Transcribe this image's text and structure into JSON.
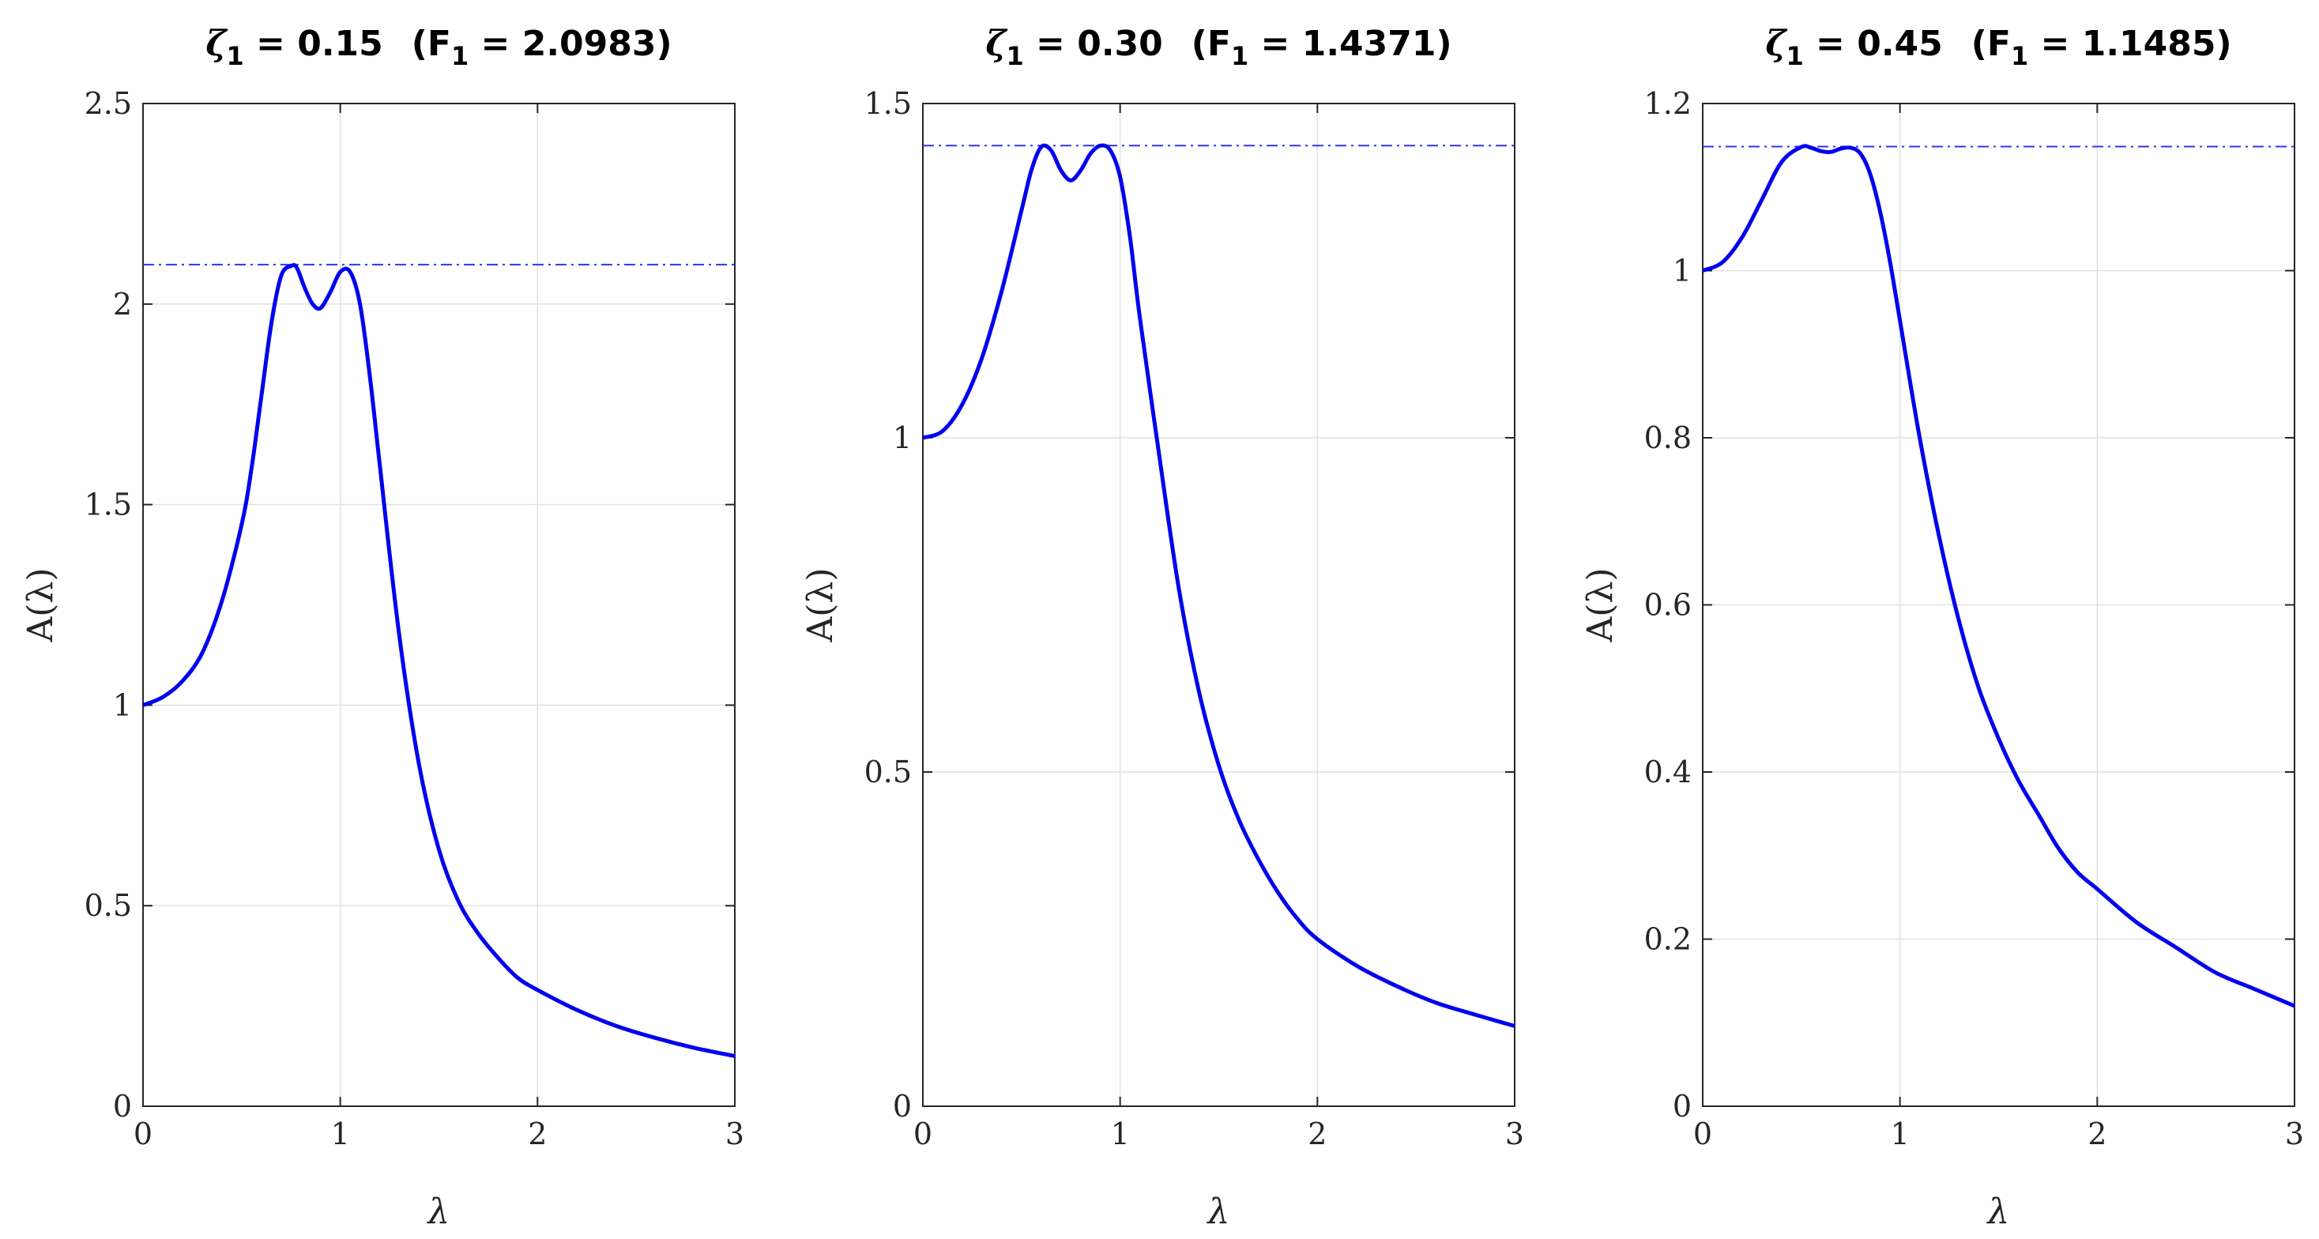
{
  "chart_data": [
    {
      "type": "line",
      "title_parts": {
        "zeta": "ζ",
        "sub": "1",
        "zeta_value": " = 0.15",
        "f_open": "(F",
        "f_value": " = 2.0983)"
      },
      "xlabel": "λ",
      "ylabel": "A(λ)",
      "xlim": [
        0,
        3
      ],
      "ylim": [
        0,
        2.5
      ],
      "xticks": [
        0,
        1,
        2,
        3
      ],
      "yticks": [
        0,
        0.5,
        1,
        1.5,
        2,
        2.5
      ],
      "xtick_labels": [
        "0",
        "1",
        "2",
        "3"
      ],
      "ytick_labels": [
        "0",
        "0.5",
        "1",
        "1.5",
        "2",
        "2.5"
      ],
      "grid": true,
      "reference_line": {
        "y": 2.0983,
        "style": "dash-dot"
      },
      "series": [
        {
          "x": [
            0,
            0.1,
            0.2,
            0.3,
            0.4,
            0.5,
            0.55,
            0.6,
            0.65,
            0.7,
            0.75,
            0.78,
            0.82,
            0.86,
            0.9,
            0.95,
            1.0,
            1.05,
            1.1,
            1.15,
            1.2,
            1.3,
            1.4,
            1.5,
            1.6,
            1.7,
            1.8,
            1.9,
            2.0,
            2.2,
            2.4,
            2.6,
            2.8,
            3.0
          ],
          "y": [
            1.0,
            1.02,
            1.06,
            1.13,
            1.26,
            1.45,
            1.59,
            1.77,
            1.95,
            2.07,
            2.095,
            2.09,
            2.04,
            2.0,
            1.99,
            2.03,
            2.08,
            2.08,
            2.0,
            1.82,
            1.6,
            1.17,
            0.85,
            0.64,
            0.51,
            0.43,
            0.37,
            0.32,
            0.29,
            0.24,
            0.2,
            0.17,
            0.145,
            0.125
          ]
        }
      ]
    },
    {
      "type": "line",
      "title_parts": {
        "zeta": "ζ",
        "sub": "1",
        "zeta_value": " = 0.30",
        "f_open": "(F",
        "f_value": " = 1.4371)"
      },
      "xlabel": "λ",
      "ylabel": "A(λ)",
      "xlim": [
        0,
        3
      ],
      "ylim": [
        0,
        1.5
      ],
      "xticks": [
        0,
        1,
        2,
        3
      ],
      "yticks": [
        0,
        0.5,
        1,
        1.5
      ],
      "xtick_labels": [
        "0",
        "1",
        "2",
        "3"
      ],
      "ytick_labels": [
        "0",
        "0.5",
        "1",
        "1.5"
      ],
      "grid": true,
      "reference_line": {
        "y": 1.4371,
        "style": "dash-dot"
      },
      "series": [
        {
          "x": [
            0,
            0.1,
            0.2,
            0.3,
            0.4,
            0.5,
            0.55,
            0.6,
            0.65,
            0.7,
            0.75,
            0.8,
            0.85,
            0.9,
            0.95,
            1.0,
            1.05,
            1.1,
            1.2,
            1.3,
            1.4,
            1.5,
            1.6,
            1.7,
            1.8,
            1.9,
            2.0,
            2.2,
            2.4,
            2.6,
            2.8,
            3.0
          ],
          "y": [
            1.0,
            1.01,
            1.05,
            1.12,
            1.22,
            1.34,
            1.4,
            1.435,
            1.43,
            1.4,
            1.385,
            1.4,
            1.425,
            1.437,
            1.43,
            1.39,
            1.3,
            1.18,
            0.97,
            0.77,
            0.62,
            0.51,
            0.43,
            0.37,
            0.32,
            0.28,
            0.25,
            0.21,
            0.18,
            0.155,
            0.137,
            0.12
          ]
        }
      ]
    },
    {
      "type": "line",
      "title_parts": {
        "zeta": "ζ",
        "sub": "1",
        "zeta_value": " = 0.45",
        "f_open": "(F",
        "f_value": " = 1.1485)"
      },
      "xlabel": "λ",
      "ylabel": "A(λ)",
      "xlim": [
        0,
        3
      ],
      "ylim": [
        0,
        1.2
      ],
      "xticks": [
        0,
        1,
        2,
        3
      ],
      "yticks": [
        0,
        0.2,
        0.4,
        0.6,
        0.8,
        1,
        1.2
      ],
      "xtick_labels": [
        "0",
        "1",
        "2",
        "3"
      ],
      "ytick_labels": [
        "0",
        "0.2",
        "0.4",
        "0.6",
        "0.8",
        "1",
        "1.2"
      ],
      "grid": true,
      "reference_line": {
        "y": 1.1485,
        "style": "dash-dot"
      },
      "series": [
        {
          "x": [
            0,
            0.1,
            0.2,
            0.3,
            0.4,
            0.5,
            0.55,
            0.6,
            0.65,
            0.7,
            0.75,
            0.8,
            0.85,
            0.9,
            0.95,
            1.0,
            1.1,
            1.2,
            1.3,
            1.4,
            1.5,
            1.6,
            1.7,
            1.8,
            1.9,
            2.0,
            2.2,
            2.4,
            2.6,
            2.8,
            3.0
          ],
          "y": [
            1.0,
            1.01,
            1.04,
            1.085,
            1.13,
            1.148,
            1.147,
            1.143,
            1.142,
            1.146,
            1.147,
            1.14,
            1.115,
            1.07,
            1.01,
            0.94,
            0.8,
            0.68,
            0.58,
            0.5,
            0.44,
            0.39,
            0.35,
            0.31,
            0.28,
            0.26,
            0.22,
            0.19,
            0.16,
            0.14,
            0.12
          ]
        }
      ]
    }
  ]
}
